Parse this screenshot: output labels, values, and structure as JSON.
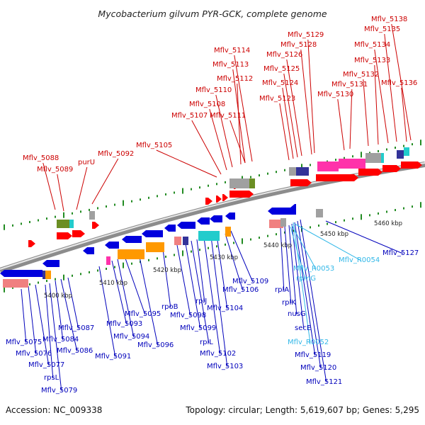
{
  "title": "Mycobacterium gilvum PYR-GCK, complete genome",
  "footer": {
    "accession": "Accession: NC_009338",
    "summary": "Topology: circular; Length: 5,619,607 bp; Genes: 5,295"
  },
  "colors": {
    "forward_label": "#cc0000",
    "reverse_label": "#0000bb",
    "rna_label": "#33b8e8",
    "forward_gene": "#ff0000",
    "reverse_gene": "#0000dd",
    "backbone": "#8c8c8c",
    "tick": "#228b22",
    "cog_orange": "#ff9900",
    "cog_magenta": "#ff33aa",
    "cog_cyan": "#22cccc",
    "cog_salmon": "#f08080",
    "cog_olive": "#6b8e23",
    "cog_grey": "#a0a0a0",
    "cog_navy": "#333399"
  },
  "scale_labels": [
    "5400 kbp",
    "5410 kbp",
    "5420 kbp",
    "5430 kbp",
    "5440 kbp",
    "5450 kbp",
    "5460 kbp"
  ],
  "forward_labels": [
    "Mflv_5088",
    "Mflv_5089",
    "purU",
    "Mflv_5092",
    "Mflv_5105",
    "Mflv_5107",
    "Mflv_5108",
    "Mflv_5110",
    "Mflv_5111",
    "Mflv_5112",
    "Mflv_5113",
    "Mflv_5114",
    "Mflv_5123",
    "Mflv_5124",
    "Mflv_5125",
    "Mflv_5126",
    "Mflv_5128",
    "Mflv_5129",
    "Mflv_5130",
    "Mflv_5131",
    "Mflv_5132",
    "Mflv_5133",
    "Mflv_5134",
    "Mflv_5135",
    "Mflv_5136",
    "Mflv_5138"
  ],
  "reverse_labels": [
    "Mflv_5075",
    "Mflv_5076",
    "Mflv_5077",
    "rpsL",
    "Mflv_5079",
    "Mflv_5084",
    "Mflv_5086",
    "Mflv_5087",
    "Mflv_5091",
    "Mflv_5093",
    "Mflv_5094",
    "Mflv_5095",
    "Mflv_5096",
    "rpoB",
    "Mflv_5098",
    "Mflv_5099",
    "rplL",
    "rplJ",
    "Mflv_5102",
    "Mflv_5103",
    "Mflv_5104",
    "Mflv_5106",
    "Mflv_5109",
    "rplA",
    "rplK",
    "nusG",
    "secE",
    "Mflv_5119",
    "Mflv_5120",
    "Mflv_5121",
    "Mflv_5127"
  ],
  "rna_labels": [
    "Mflv_R0053",
    "Mflv_R0054",
    "rpmG",
    "Mflv_R0052"
  ]
}
